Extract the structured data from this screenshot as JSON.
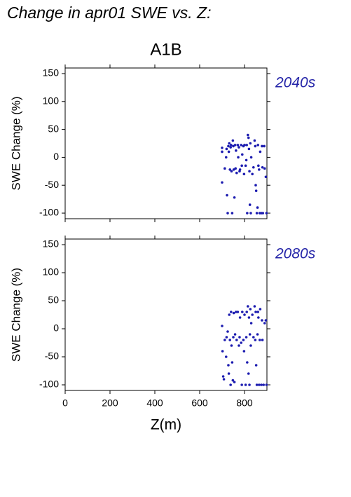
{
  "title": "Change in apr01 SWE vs. Z:",
  "subtitle": "A1B",
  "chart_data": [
    {
      "type": "scatter",
      "label": "2040s",
      "ylabel": "SWE Change (%)",
      "color": "#1c1cb0",
      "xlim": [
        0,
        900
      ],
      "xticks": [
        0,
        200,
        400,
        600,
        800
      ],
      "xtick_labels": false,
      "ylim": [
        -110,
        160
      ],
      "yticks": [
        -100,
        -50,
        0,
        50,
        100,
        150
      ],
      "x": [
        700,
        700,
        700,
        712,
        718,
        720,
        722,
        725,
        728,
        730,
        732,
        735,
        738,
        740,
        742,
        745,
        748,
        750,
        752,
        755,
        758,
        760,
        762,
        765,
        770,
        772,
        775,
        778,
        780,
        785,
        788,
        790,
        795,
        798,
        800,
        805,
        808,
        810,
        812,
        815,
        818,
        820,
        822,
        824,
        826,
        828,
        830,
        835,
        840,
        845,
        848,
        850,
        852,
        855,
        858,
        860,
        862,
        865,
        868,
        870,
        875,
        878,
        880,
        882,
        888,
        890,
        895,
        898
      ],
      "values": [
        10,
        17,
        -45,
        -20,
        0,
        15,
        -68,
        -100,
        20,
        10,
        25,
        -22,
        18,
        22,
        -25,
        -100,
        30,
        20,
        -22,
        -72,
        22,
        -20,
        12,
        -28,
        22,
        0,
        18,
        -25,
        -22,
        22,
        -15,
        5,
        20,
        -30,
        22,
        -15,
        -5,
        22,
        -100,
        40,
        35,
        15,
        -25,
        -85,
        25,
        -100,
        0,
        -30,
        -18,
        30,
        20,
        -50,
        -60,
        -100,
        -90,
        22,
        -15,
        -22,
        -100,
        10,
        -100,
        20,
        -18,
        -100,
        20,
        -20,
        -35,
        -100
      ]
    },
    {
      "type": "scatter",
      "label": "2080s",
      "ylabel": "SWE Change (%)",
      "xlabel": "Z(m)",
      "color": "#1c1cb0",
      "xlim": [
        0,
        900
      ],
      "xticks": [
        0,
        200,
        400,
        600,
        800
      ],
      "xtick_labels": true,
      "ylim": [
        -110,
        160
      ],
      "yticks": [
        -100,
        -50,
        0,
        50,
        100,
        150
      ],
      "x": [
        700,
        702,
        705,
        708,
        712,
        718,
        720,
        725,
        728,
        730,
        732,
        735,
        738,
        740,
        742,
        745,
        748,
        750,
        752,
        755,
        758,
        762,
        765,
        770,
        775,
        778,
        780,
        785,
        788,
        790,
        795,
        798,
        800,
        805,
        808,
        810,
        812,
        815,
        818,
        820,
        822,
        824,
        826,
        828,
        830,
        835,
        840,
        845,
        848,
        850,
        852,
        855,
        858,
        860,
        862,
        865,
        868,
        870,
        875,
        878,
        880,
        885,
        890,
        895,
        898
      ],
      "values": [
        5,
        -40,
        -85,
        -90,
        -20,
        -50,
        -15,
        -5,
        -65,
        -80,
        25,
        -20,
        -100,
        30,
        -30,
        -60,
        -92,
        -15,
        28,
        -95,
        -10,
        30,
        -20,
        30,
        -30,
        -15,
        20,
        -25,
        -100,
        30,
        -20,
        -40,
        25,
        -100,
        -15,
        30,
        -60,
        40,
        -80,
        20,
        -100,
        -10,
        35,
        -30,
        10,
        25,
        -15,
        40,
        -20,
        30,
        -65,
        -100,
        -10,
        30,
        20,
        -100,
        -20,
        35,
        -100,
        15,
        -20,
        -100,
        10,
        15,
        -100
      ]
    }
  ]
}
